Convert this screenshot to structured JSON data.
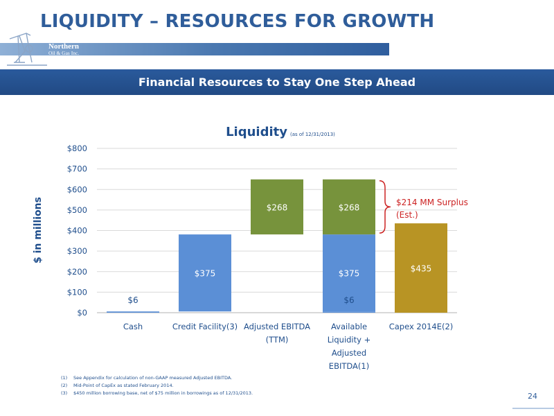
{
  "header": {
    "title": "LIQUIDITY – RESOURCES FOR GROWTH",
    "logo_line1": "Northern",
    "logo_line2": "Oil & Gas Inc."
  },
  "banner": {
    "text": "Financial Resources to Stay One Step Ahead"
  },
  "colors": {
    "blue": "#5b8fd6",
    "green": "#77933c",
    "gold": "#b89424",
    "accent_red": "#cc2222"
  },
  "chart_data": {
    "type": "bar",
    "title": "Liquidity",
    "subtitle": "(as of 12/31/2013)",
    "ylabel": "$ in millions",
    "xlabel": "",
    "ylim": [
      0,
      800
    ],
    "yticks": [
      "$0",
      "$100",
      "$200",
      "$300",
      "$400",
      "$500",
      "$600",
      "$700",
      "$800"
    ],
    "grid": true,
    "categories": [
      [
        "Cash"
      ],
      [
        "Credit Facility(3)"
      ],
      [
        "Adjusted EBITDA",
        "(TTM)"
      ],
      [
        "Available",
        "Liquidity +",
        "Adjusted",
        "EBITDA(1)"
      ],
      [
        "Capex 2014E(2)"
      ]
    ],
    "segments": [
      {
        "category": 0,
        "base": 0,
        "value": 6,
        "color": "blue",
        "label": "$6"
      },
      {
        "category": 1,
        "base": 6,
        "value": 375,
        "color": "blue",
        "label": "$375"
      },
      {
        "category": 2,
        "base": 381,
        "value": 268,
        "color": "green",
        "label": "$268"
      },
      {
        "category": 3,
        "base": 0,
        "value": 6,
        "color": "blue",
        "label": "$6"
      },
      {
        "category": 3,
        "base": 6,
        "value": 375,
        "color": "blue",
        "label": "$375"
      },
      {
        "category": 3,
        "base": 381,
        "value": 268,
        "color": "green",
        "label": "$268"
      },
      {
        "category": 4,
        "base": 0,
        "value": 435,
        "color": "gold",
        "label": "$435"
      }
    ],
    "annotation": {
      "line1": "$214 MM Surplus",
      "line2": "(Est.)"
    }
  },
  "footnotes": [
    {
      "num": "(1)",
      "text": "See Appendix for calculation of non-GAAP measured Adjusted EBITDA."
    },
    {
      "num": "(2)",
      "text": "Mid-Point of CapEx as stated February 2014."
    },
    {
      "num": "(3)",
      "text": "$450 million borrowing base, net of $75 million in borrowings as of 12/31/2013."
    }
  ],
  "page_number": "24"
}
